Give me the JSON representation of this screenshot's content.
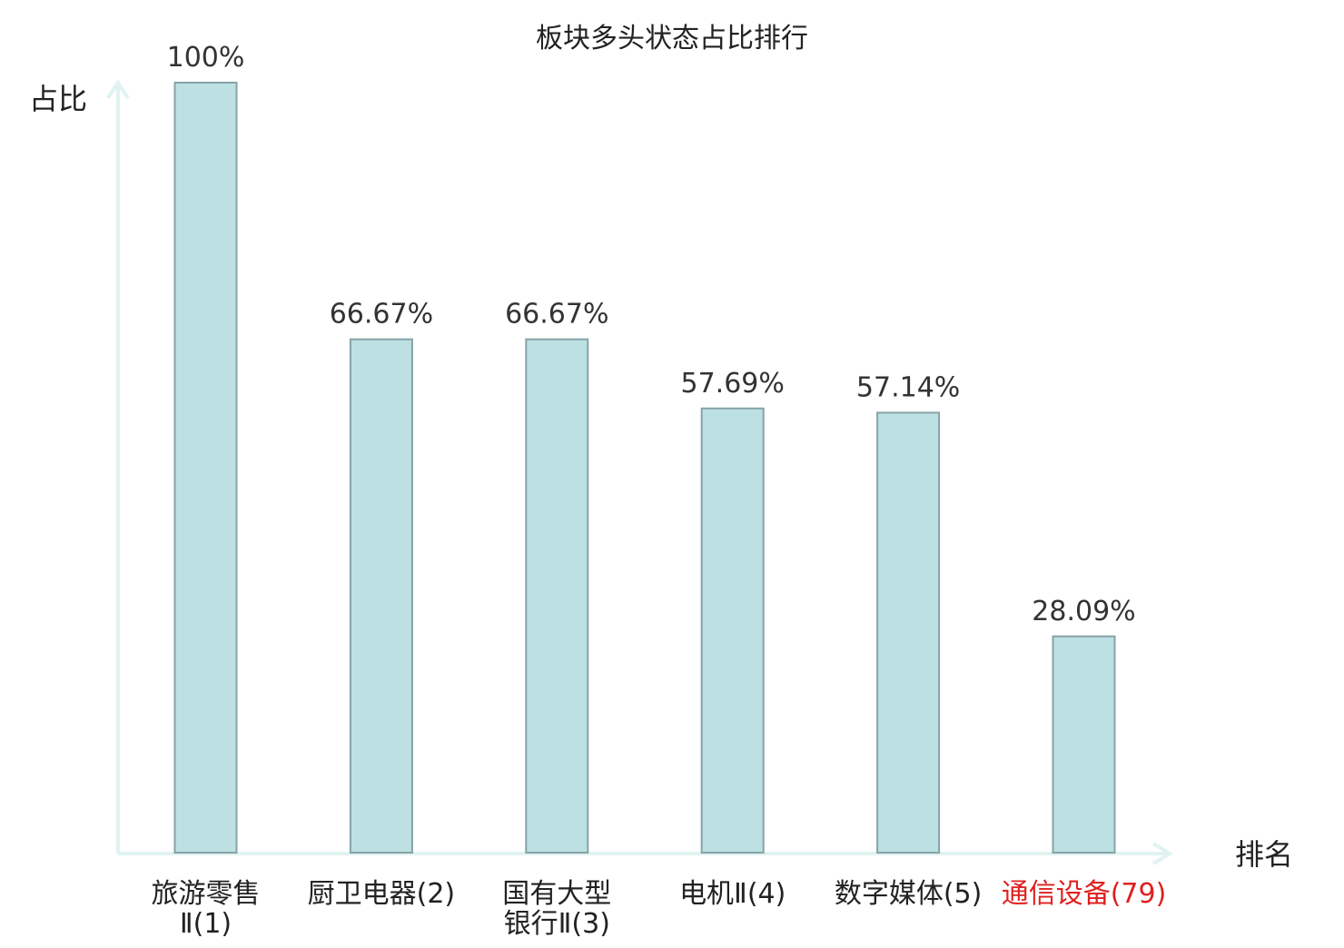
{
  "chart_data": {
    "type": "bar",
    "title": "板块多头状态占比排行",
    "ylabel": "占比",
    "xlabel": "排名",
    "ylim": [
      0,
      100
    ],
    "grid": false,
    "categories": [
      {
        "name_lines": [
          "旅游零售",
          "Ⅱ(1)"
        ],
        "highlight": false
      },
      {
        "name_lines": [
          "厨卫电器(2)"
        ],
        "highlight": false
      },
      {
        "name_lines": [
          "国有大型",
          "银行Ⅱ(3)"
        ],
        "highlight": false
      },
      {
        "name_lines": [
          "电机Ⅱ(4)"
        ],
        "highlight": false
      },
      {
        "name_lines": [
          "数字媒体(5)"
        ],
        "highlight": false
      },
      {
        "name_lines": [
          "通信设备(79)"
        ],
        "highlight": true
      }
    ],
    "values": [
      100,
      66.67,
      66.67,
      57.69,
      57.14,
      28.09
    ],
    "value_labels": [
      "100%",
      "66.67%",
      "66.67%",
      "57.69%",
      "57.14%",
      "28.09%"
    ]
  },
  "colors": {
    "bar_fill": "#bde0e3",
    "bar_stroke": "#86a3a7",
    "axis": "#e0f3f1",
    "text": "#333333",
    "highlight_text": "#e02020"
  }
}
